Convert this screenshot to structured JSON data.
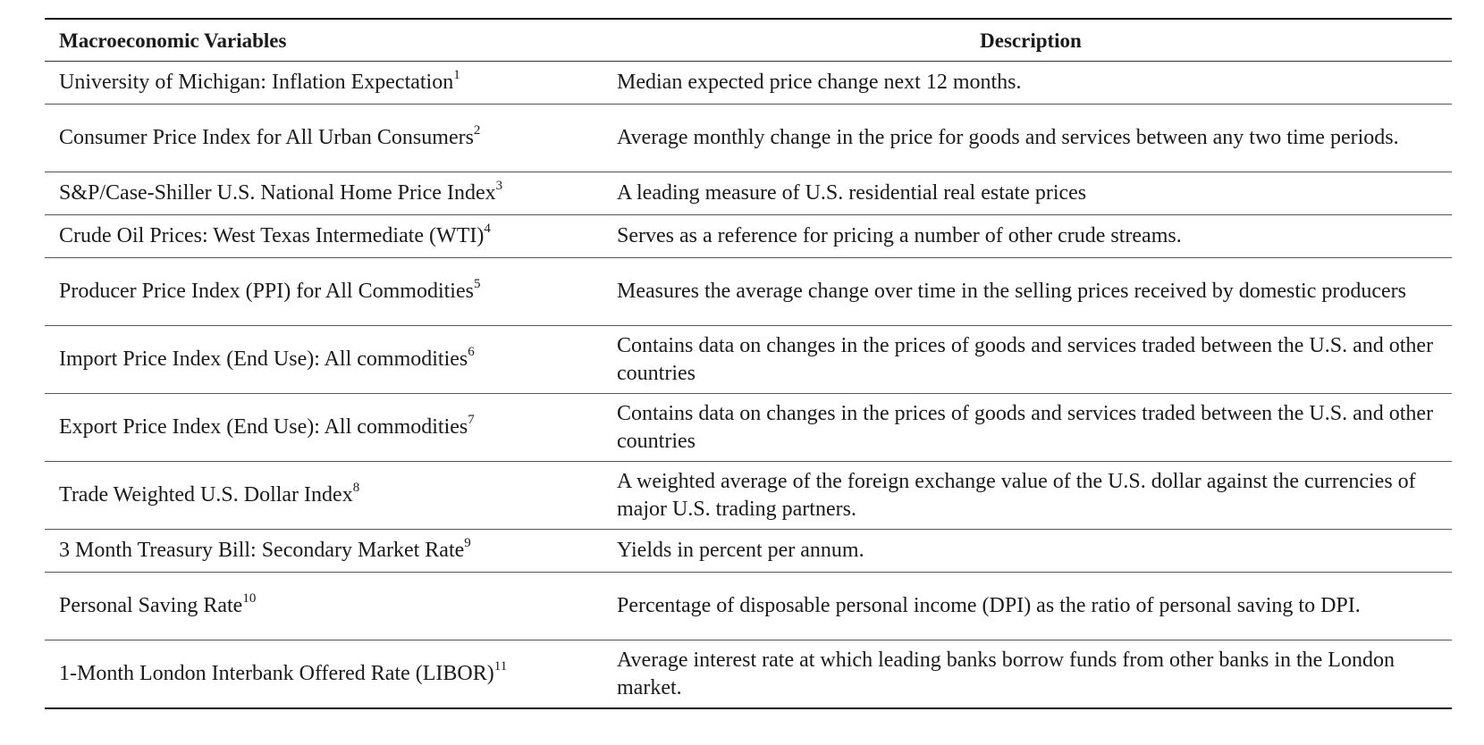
{
  "table": {
    "headers": {
      "variable": "Macroeconomic Variables",
      "description": "Description"
    },
    "rows": [
      {
        "variable": "University of Michigan: Inflation Expectation",
        "note": "1",
        "description": "Median expected price change next 12 months."
      },
      {
        "variable": "Consumer Price Index for All Urban Consumers",
        "note": "2",
        "description": "Average monthly change in the price for goods and services between any two time periods."
      },
      {
        "variable": "S&P/Case-Shiller U.S. National Home Price Index",
        "note": "3",
        "description": "A leading measure of U.S. residential real estate prices"
      },
      {
        "variable": "Crude Oil Prices: West Texas Intermediate (WTI)",
        "note": "4",
        "description": "Serves as a reference for pricing a number of other crude streams."
      },
      {
        "variable": "Producer Price Index (PPI) for All Commodities",
        "note": "5",
        "description": "Measures the average change over time in the selling prices received by domestic producers"
      },
      {
        "variable": "Import Price Index (End Use): All commodities",
        "note": "6",
        "description": "Contains data on changes in the prices of goods and services traded between the U.S. and other countries"
      },
      {
        "variable": "Export Price Index (End Use): All commodities",
        "note": "7",
        "description": "Contains data on changes in the prices of goods and services traded between the U.S. and other countries"
      },
      {
        "variable": "Trade Weighted U.S. Dollar Index",
        "note": "8",
        "description": "A weighted average of the foreign exchange value of the U.S. dollar against the currencies of major U.S. trading partners."
      },
      {
        "variable": "3 Month Treasury Bill: Secondary Market Rate",
        "note": "9",
        "description": "Yields in percent per annum."
      },
      {
        "variable": "Personal Saving Rate",
        "note": "10",
        "description": "Percentage of disposable personal income (DPI) as the ratio of personal saving to DPI."
      },
      {
        "variable": "1-Month London Interbank Offered Rate (LIBOR)",
        "note": "11",
        "description": "Average interest rate at which leading banks borrow funds from other banks in the London market."
      }
    ]
  }
}
